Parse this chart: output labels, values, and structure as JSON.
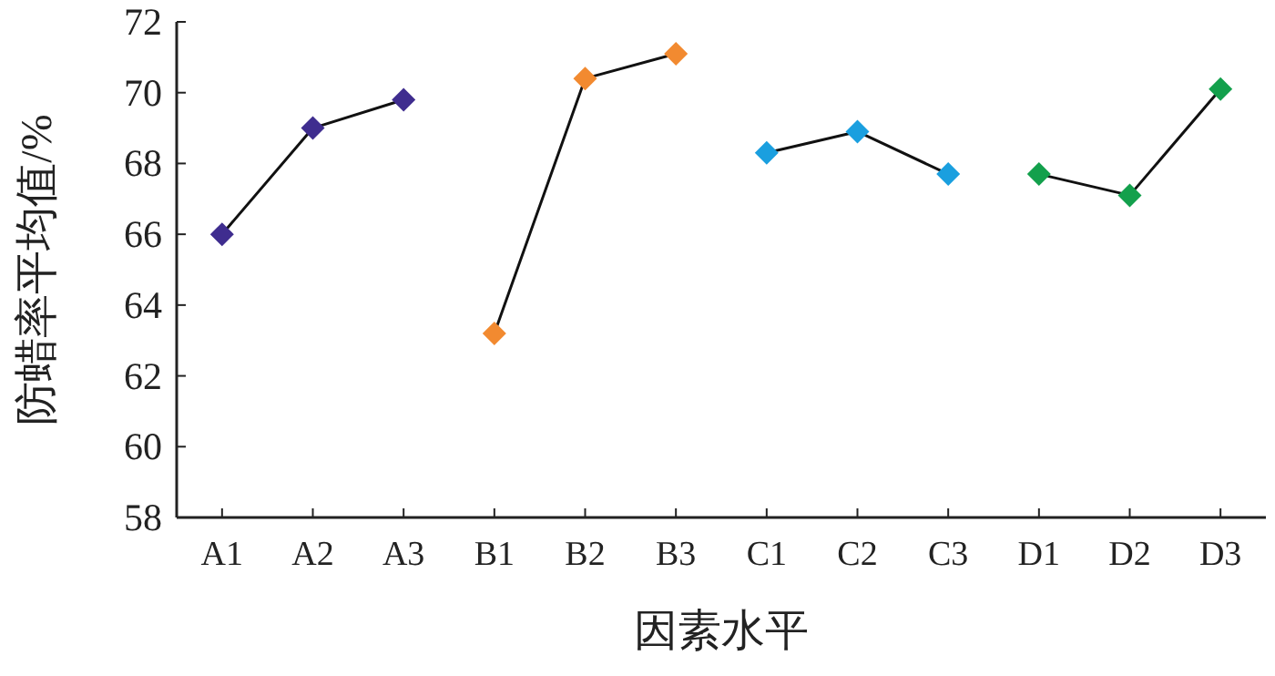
{
  "chart_data": {
    "type": "line",
    "xlabel": "因素水平",
    "ylabel": "防蜡率平均值/%",
    "categories": [
      "A1",
      "A2",
      "A3",
      "B1",
      "B2",
      "B3",
      "C1",
      "C2",
      "C3",
      "D1",
      "D2",
      "D3"
    ],
    "ylim": [
      58,
      72
    ],
    "yticks": [
      58,
      60,
      62,
      64,
      66,
      68,
      70,
      72
    ],
    "marker": "diamond",
    "line_style": "solid",
    "grid": false,
    "series": [
      {
        "color": "#3f2d8f",
        "values": [
          66.0,
          69.0,
          69.8,
          null,
          null,
          null,
          null,
          null,
          null,
          null,
          null,
          null
        ]
      },
      {
        "color": "#f28a30",
        "values": [
          null,
          null,
          null,
          63.2,
          70.4,
          71.1,
          null,
          null,
          null,
          null,
          null,
          null
        ]
      },
      {
        "color": "#1a9fdf",
        "values": [
          null,
          null,
          null,
          null,
          null,
          null,
          68.3,
          68.9,
          67.7,
          null,
          null,
          null
        ]
      },
      {
        "color": "#13a04c",
        "values": [
          null,
          null,
          null,
          null,
          null,
          null,
          null,
          null,
          null,
          67.7,
          67.1,
          70.1
        ]
      }
    ]
  }
}
